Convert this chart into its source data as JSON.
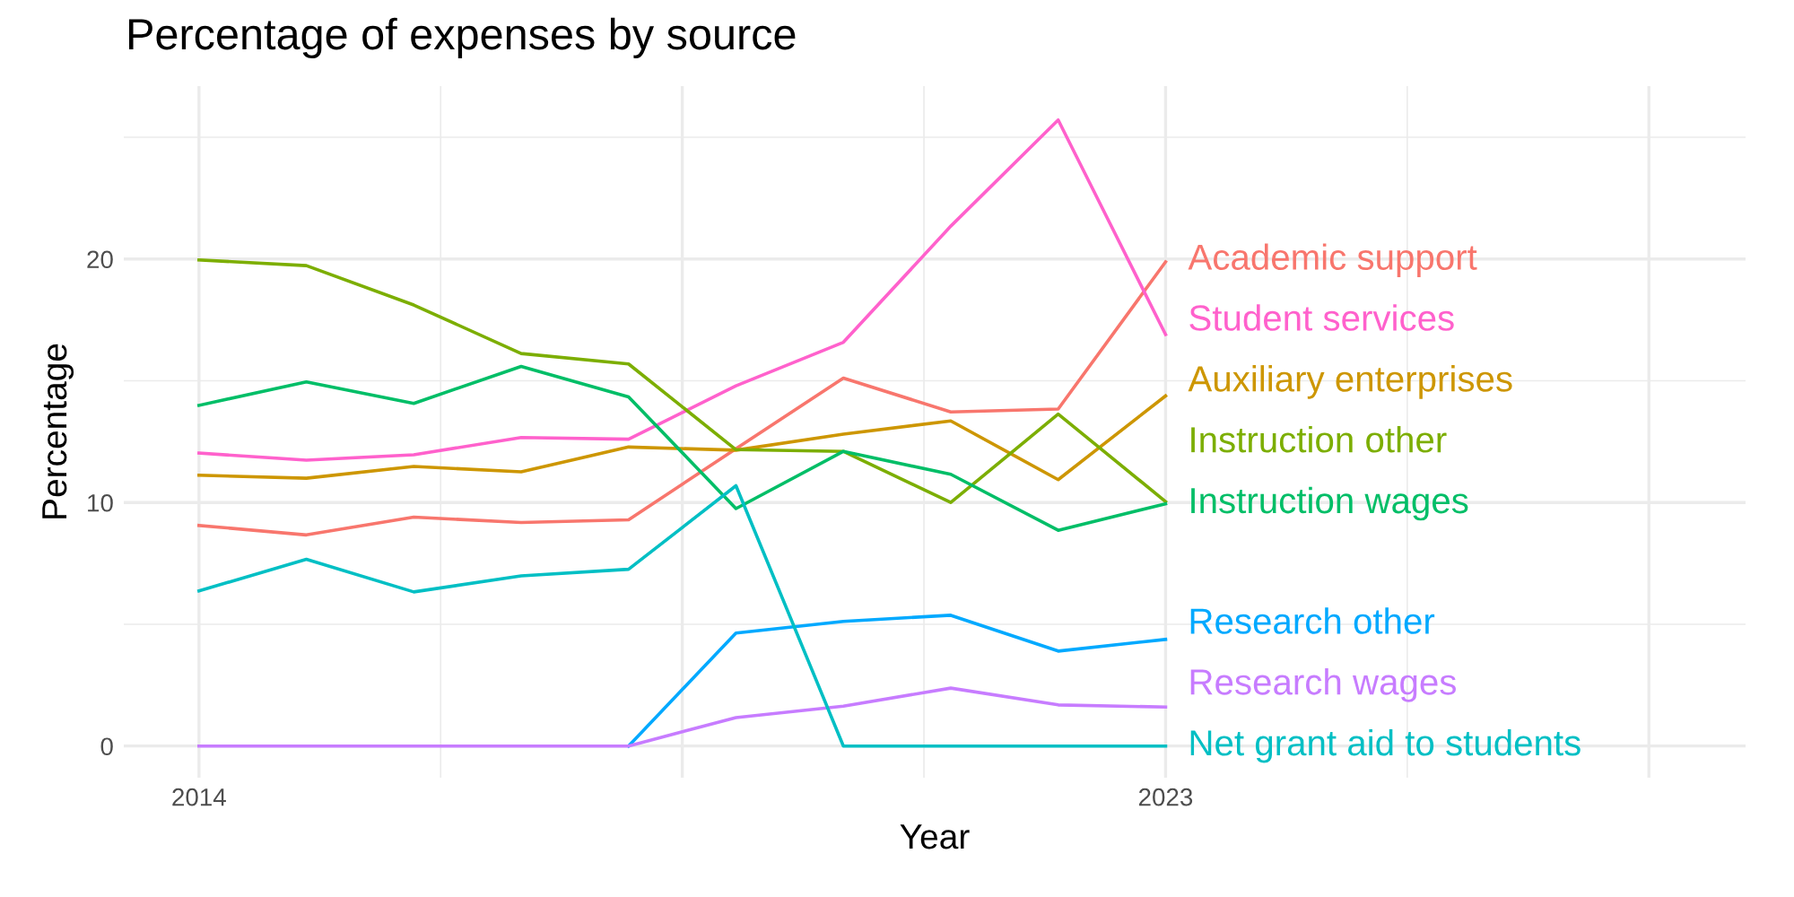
{
  "chart_data": {
    "type": "line",
    "title": "Percentage of expenses by source",
    "xlabel": "Year",
    "ylabel": "Percentage",
    "x": [
      2014,
      2015,
      2016,
      2017,
      2018,
      2019,
      2020,
      2021,
      2022,
      2023
    ],
    "series": [
      {
        "name": "Academic support",
        "color": "#f8766d",
        "values": [
          9.06,
          8.67,
          9.4,
          9.18,
          9.29,
          12.21,
          15.11,
          13.72,
          13.84,
          19.88
        ]
      },
      {
        "name": "Student services",
        "color": "#ff61cc",
        "values": [
          12.03,
          11.74,
          11.96,
          12.67,
          12.6,
          14.79,
          16.58,
          21.35,
          25.71,
          16.9
        ]
      },
      {
        "name": "Auxiliary enterprises",
        "color": "#cd9600",
        "values": [
          11.12,
          11.0,
          11.48,
          11.26,
          12.28,
          12.15,
          12.81,
          13.35,
          10.94,
          14.38
        ]
      },
      {
        "name": "Instruction other",
        "color": "#7cae00",
        "values": [
          19.96,
          19.73,
          18.11,
          16.12,
          15.69,
          12.17,
          12.1,
          10.0,
          13.63,
          10.04
        ]
      },
      {
        "name": "Instruction wages",
        "color": "#00be67",
        "values": [
          13.99,
          14.95,
          14.07,
          15.59,
          14.34,
          9.75,
          12.1,
          11.16,
          8.86,
          9.95
        ]
      },
      {
        "name": "Research other",
        "color": "#00a9ff",
        "values": [
          null,
          null,
          null,
          null,
          0,
          4.64,
          5.12,
          5.37,
          3.9,
          4.38
        ]
      },
      {
        "name": "Research wages",
        "color": "#c77cff",
        "values": [
          0,
          0,
          0,
          0,
          0,
          1.17,
          1.64,
          2.38,
          1.69,
          1.6
        ]
      },
      {
        "name": "Net grant aid to students",
        "color": "#00bfc4",
        "values": [
          6.37,
          7.67,
          6.33,
          6.99,
          7.26,
          10.69,
          0,
          0,
          0,
          0
        ]
      }
    ],
    "xlim": [
      2013.3,
      2028.4
    ],
    "xticks": [
      2014,
      {
        "value": 2018.5,
        "label": null
      },
      2023,
      {
        "value": 2027.5,
        "label": null
      }
    ],
    "ylim": [
      -1.3,
      27.1
    ],
    "yticks": [
      0,
      10,
      20
    ],
    "grid": true,
    "line_style": "solid",
    "marker": "none"
  }
}
